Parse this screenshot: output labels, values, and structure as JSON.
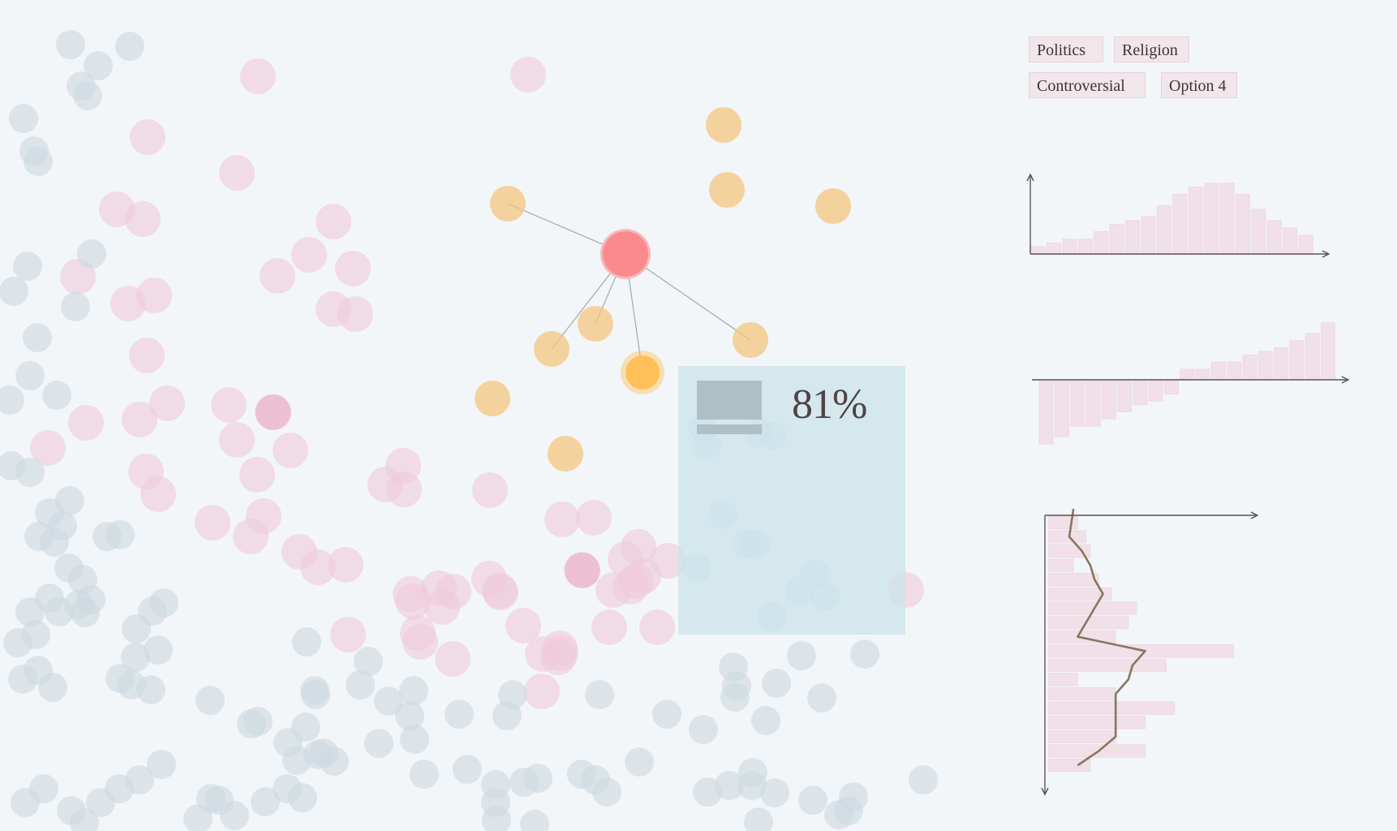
{
  "filters": {
    "tags": [
      {
        "label": "Politics"
      },
      {
        "label": "Religion"
      },
      {
        "label": "Controversial"
      },
      {
        "label": "Option 4"
      }
    ]
  },
  "panel": {
    "percent": "81%"
  },
  "colors": {
    "background": "#f2f6f9",
    "pink_dot": "#efcadb",
    "slate_dot": "#cdd9df",
    "orange_node": "#f4c57f",
    "hub_node": "#fa8a8e",
    "selected_node": "#ffc05a",
    "bar_fill": "#f1e0e8",
    "line": "#86775f"
  },
  "icons": {
    "info_icon": "stacked-block-icon"
  },
  "chart_data": [
    {
      "type": "bar",
      "values": [
        2,
        3,
        4,
        4,
        6,
        8,
        9,
        10,
        13,
        16,
        18,
        19,
        19,
        16,
        12,
        9,
        7,
        5
      ],
      "ylim": [
        0,
        20
      ],
      "grid": false
    },
    {
      "type": "bar",
      "values": [
        -18,
        -16,
        -13,
        -13,
        -11,
        -9,
        -7,
        -6,
        -4,
        3,
        3,
        5,
        5,
        7,
        8,
        9,
        11,
        13,
        16
      ],
      "ylim": [
        -20,
        20
      ],
      "grid": false
    },
    {
      "type": "bar",
      "orientation": "horizontal",
      "values": [
        7,
        9,
        10,
        6,
        12,
        15,
        21,
        19,
        16,
        44,
        28,
        7,
        16,
        30,
        23,
        16,
        23,
        10
      ],
      "line": [
        6,
        5,
        8,
        10,
        11,
        13,
        11,
        9,
        7,
        23,
        20,
        19,
        16,
        16,
        16,
        16,
        12,
        7
      ],
      "xlim": [
        0,
        50
      ],
      "grid": false
    }
  ]
}
